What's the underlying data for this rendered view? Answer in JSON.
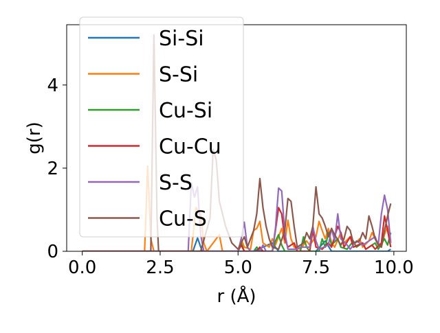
{
  "chart_data": {
    "type": "line",
    "xlabel": "r (Å)",
    "ylabel": "g(r)",
    "xlim": [
      -0.5,
      10.4
    ],
    "ylim": [
      0,
      5.45
    ],
    "xticks": [
      "0.0",
      "2.5",
      "5.0",
      "7.5",
      "10.0"
    ],
    "xtick_values": [
      0,
      2.5,
      5,
      7.5,
      10
    ],
    "yticks": [
      "0",
      "2",
      "4"
    ],
    "ytick_values": [
      0,
      2,
      4
    ],
    "grid": false,
    "legend_position": "top-left",
    "series": [
      {
        "name": "Si-Si",
        "color": "#1f77b4",
        "points": [
          [
            0,
            0
          ],
          [
            3.55,
            0
          ],
          [
            3.7,
            0.32
          ],
          [
            3.85,
            0
          ],
          [
            5.5,
            0
          ],
          [
            6.1,
            0.2
          ],
          [
            6.3,
            0
          ],
          [
            7.5,
            0
          ],
          [
            7.8,
            0.25
          ],
          [
            8,
            0
          ],
          [
            9.8,
            0
          ],
          [
            9.9,
            0.05
          ]
        ]
      },
      {
        "name": "S-Si",
        "color": "#ff7f0e",
        "points": [
          [
            0,
            0
          ],
          [
            2.0,
            0
          ],
          [
            2.1,
            2.05
          ],
          [
            2.2,
            0.3
          ],
          [
            2.3,
            0
          ],
          [
            3.5,
            0
          ],
          [
            3.65,
            1.05
          ],
          [
            3.8,
            0.9
          ],
          [
            3.9,
            0.2
          ],
          [
            4.0,
            0
          ],
          [
            4.3,
            0.3
          ],
          [
            4.4,
            0.4
          ],
          [
            4.5,
            0
          ],
          [
            5.0,
            0
          ],
          [
            5.1,
            0.3
          ],
          [
            5.2,
            0.1
          ],
          [
            5.4,
            0.05
          ],
          [
            5.5,
            0.5
          ],
          [
            5.6,
            0.55
          ],
          [
            5.7,
            0.72
          ],
          [
            5.8,
            0.2
          ],
          [
            6.0,
            0.1
          ],
          [
            6.1,
            0.3
          ],
          [
            6.2,
            0.15
          ],
          [
            6.4,
            0.55
          ],
          [
            6.5,
            0.2
          ],
          [
            6.6,
            0.75
          ],
          [
            6.7,
            0.3
          ],
          [
            6.8,
            0.1
          ],
          [
            7.0,
            0.05
          ],
          [
            7.2,
            0.25
          ],
          [
            7.3,
            0.15
          ],
          [
            7.5,
            0.35
          ],
          [
            7.6,
            0.72
          ],
          [
            7.7,
            0.5
          ],
          [
            7.8,
            0.3
          ],
          [
            7.9,
            0.55
          ],
          [
            8.0,
            0.2
          ],
          [
            8.1,
            0.1
          ],
          [
            8.3,
            0.45
          ],
          [
            8.4,
            0.2
          ],
          [
            8.6,
            0.35
          ],
          [
            8.7,
            0.15
          ],
          [
            8.9,
            0.3
          ],
          [
            9.0,
            0.1
          ],
          [
            9.2,
            0.25
          ],
          [
            9.3,
            0.45
          ],
          [
            9.4,
            0.3
          ],
          [
            9.5,
            0.2
          ],
          [
            9.6,
            0.1
          ],
          [
            9.7,
            0.4
          ],
          [
            9.8,
            0.6
          ],
          [
            9.9,
            0.25
          ]
        ]
      },
      {
        "name": "Cu-Si",
        "color": "#2ca02c",
        "points": [
          [
            0,
            0
          ],
          [
            5.0,
            0
          ],
          [
            5.1,
            0.2
          ],
          [
            5.2,
            0
          ],
          [
            5.5,
            0
          ],
          [
            5.6,
            0.1
          ],
          [
            5.7,
            0
          ],
          [
            6.1,
            0
          ],
          [
            6.2,
            0.25
          ],
          [
            6.3,
            0.4
          ],
          [
            6.4,
            0.15
          ],
          [
            6.5,
            0
          ],
          [
            7.0,
            0
          ],
          [
            7.1,
            0.35
          ],
          [
            7.2,
            0.1
          ],
          [
            7.3,
            0
          ],
          [
            7.6,
            0
          ],
          [
            7.7,
            0.3
          ],
          [
            7.8,
            0.1
          ],
          [
            7.9,
            0.45
          ],
          [
            8.0,
            0.15
          ],
          [
            8.2,
            0.3
          ],
          [
            8.3,
            0.1
          ],
          [
            8.5,
            0.05
          ],
          [
            8.7,
            0.25
          ],
          [
            8.8,
            0.1
          ],
          [
            9.0,
            0.2
          ],
          [
            9.1,
            0.05
          ],
          [
            9.4,
            0.2
          ],
          [
            9.5,
            0.05
          ],
          [
            9.7,
            0.3
          ],
          [
            9.8,
            0.15
          ],
          [
            9.9,
            0.45
          ]
        ]
      },
      {
        "name": "Cu-Cu",
        "color": "#d62728",
        "points": [
          [
            0,
            0
          ],
          [
            5.0,
            0
          ],
          [
            5.1,
            0.15
          ],
          [
            5.2,
            0
          ],
          [
            5.6,
            0
          ],
          [
            5.7,
            0.1
          ],
          [
            5.8,
            0
          ],
          [
            6.1,
            0
          ],
          [
            6.2,
            0.5
          ],
          [
            6.3,
            1.05
          ],
          [
            6.4,
            0.9
          ],
          [
            6.5,
            0.3
          ],
          [
            6.6,
            0.1
          ],
          [
            6.8,
            0.2
          ],
          [
            6.9,
            0
          ],
          [
            7.3,
            0
          ],
          [
            7.4,
            0.5
          ],
          [
            7.5,
            0.1
          ],
          [
            7.7,
            0.05
          ],
          [
            7.9,
            0.2
          ],
          [
            8.0,
            0.1
          ],
          [
            8.2,
            0.6
          ],
          [
            8.3,
            0.45
          ],
          [
            8.4,
            0.1
          ],
          [
            8.6,
            0.35
          ],
          [
            8.7,
            0.1
          ],
          [
            9.0,
            0.2
          ],
          [
            9.1,
            0.05
          ],
          [
            9.3,
            0.15
          ],
          [
            9.4,
            0.05
          ],
          [
            9.6,
            0.2
          ],
          [
            9.7,
            0.85
          ],
          [
            9.8,
            0.5
          ],
          [
            9.9,
            0.1
          ]
        ]
      },
      {
        "name": "S-S",
        "color": "#9467bd",
        "points": [
          [
            0,
            0
          ],
          [
            3.4,
            0
          ],
          [
            3.5,
            1.65
          ],
          [
            3.6,
            1.3
          ],
          [
            3.7,
            1.55
          ],
          [
            3.8,
            0.4
          ],
          [
            3.9,
            0
          ],
          [
            5.0,
            0
          ],
          [
            5.1,
            0.3
          ],
          [
            5.2,
            0.7
          ],
          [
            5.3,
            0.1
          ],
          [
            5.4,
            0
          ],
          [
            5.7,
            0
          ],
          [
            5.8,
            0.15
          ],
          [
            5.9,
            0
          ],
          [
            6.1,
            0
          ],
          [
            6.2,
            0.55
          ],
          [
            6.3,
            1.52
          ],
          [
            6.4,
            1.45
          ],
          [
            6.5,
            0.45
          ],
          [
            6.6,
            0.05
          ],
          [
            6.9,
            0.05
          ],
          [
            7.0,
            0.1
          ],
          [
            7.3,
            0.1
          ],
          [
            7.4,
            0.6
          ],
          [
            7.5,
            0.25
          ],
          [
            7.6,
            0.05
          ],
          [
            7.9,
            0.15
          ],
          [
            8.0,
            0.55
          ],
          [
            8.1,
            0.25
          ],
          [
            8.2,
            0.9
          ],
          [
            8.3,
            0.3
          ],
          [
            8.5,
            0.15
          ],
          [
            8.6,
            0.05
          ],
          [
            8.8,
            0.25
          ],
          [
            9.0,
            0.15
          ],
          [
            9.2,
            0.25
          ],
          [
            9.4,
            0.35
          ],
          [
            9.5,
            0.15
          ],
          [
            9.6,
            0.9
          ],
          [
            9.7,
            1.35
          ],
          [
            9.8,
            1.0
          ],
          [
            9.9,
            0.2
          ]
        ]
      },
      {
        "name": "Cu-S",
        "color": "#8c564b",
        "points": [
          [
            0,
            0
          ],
          [
            2.2,
            0
          ],
          [
            2.3,
            5.2
          ],
          [
            2.4,
            0.8
          ],
          [
            2.45,
            0
          ],
          [
            3.8,
            0
          ],
          [
            4.1,
            0.8
          ],
          [
            4.2,
            2.45
          ],
          [
            4.3,
            2.2
          ],
          [
            4.4,
            1.2
          ],
          [
            4.6,
            0.6
          ],
          [
            4.8,
            0.2
          ],
          [
            5.0,
            0.05
          ],
          [
            5.2,
            0.35
          ],
          [
            5.3,
            0.1
          ],
          [
            5.5,
            0.5
          ],
          [
            5.6,
            0.9
          ],
          [
            5.7,
            1.75
          ],
          [
            5.8,
            1.05
          ],
          [
            5.9,
            0.6
          ],
          [
            6.0,
            0.3
          ],
          [
            6.1,
            0.1
          ],
          [
            6.3,
            0.05
          ],
          [
            6.5,
            0.5
          ],
          [
            6.6,
            1.27
          ],
          [
            6.7,
            1.2
          ],
          [
            6.8,
            0.6
          ],
          [
            6.9,
            0.1
          ],
          [
            7.1,
            0.2
          ],
          [
            7.2,
            0.45
          ],
          [
            7.3,
            0.3
          ],
          [
            7.4,
            0.6
          ],
          [
            7.5,
            1.55
          ],
          [
            7.6,
            0.9
          ],
          [
            7.7,
            0.8
          ],
          [
            7.8,
            0.6
          ],
          [
            7.9,
            0.35
          ],
          [
            8.0,
            0.55
          ],
          [
            8.1,
            0.4
          ],
          [
            8.3,
            0.15
          ],
          [
            8.4,
            0.3
          ],
          [
            8.5,
            0.6
          ],
          [
            8.6,
            0.5
          ],
          [
            8.7,
            0.2
          ],
          [
            8.9,
            0.25
          ],
          [
            9.0,
            0.45
          ],
          [
            9.1,
            0.3
          ],
          [
            9.2,
            0.85
          ],
          [
            9.3,
            0.6
          ],
          [
            9.4,
            0.3
          ],
          [
            9.5,
            0.15
          ],
          [
            9.6,
            0.1
          ],
          [
            9.7,
            0.5
          ],
          [
            9.8,
            0.85
          ],
          [
            9.9,
            1.15
          ]
        ]
      }
    ]
  }
}
